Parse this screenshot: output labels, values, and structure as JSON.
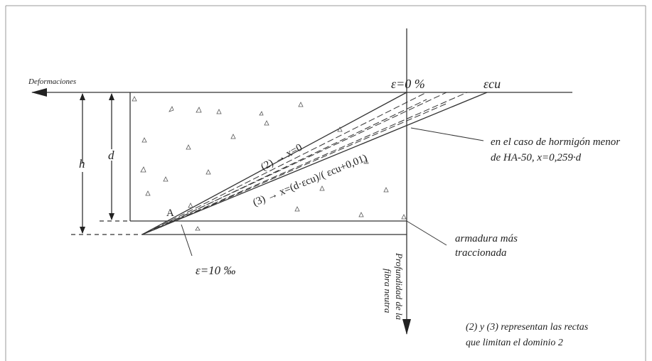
{
  "labels": {
    "deformaciones": "Deformaciones",
    "eps_zero": "ε=0 %",
    "eps_cu": "εcu",
    "h": "h",
    "d": "d",
    "line2": "(2) → x=0",
    "line3": "(3) → x=(d·εcu)/( εcu+0,01)",
    "point_a": "A",
    "eps_ten": "ε=10 ‰",
    "note_hormigon": [
      "en el caso de hormigón menor",
      "de HA-50, x=0,259·d"
    ],
    "note_armadura": [
      "armadura más",
      "traccionada"
    ],
    "axis_depth": [
      "Profundidad de la",
      "fibra neutra"
    ],
    "footnote": [
      "(2) y (3) representan las rectas",
      "que limitan el dominio 2"
    ]
  }
}
